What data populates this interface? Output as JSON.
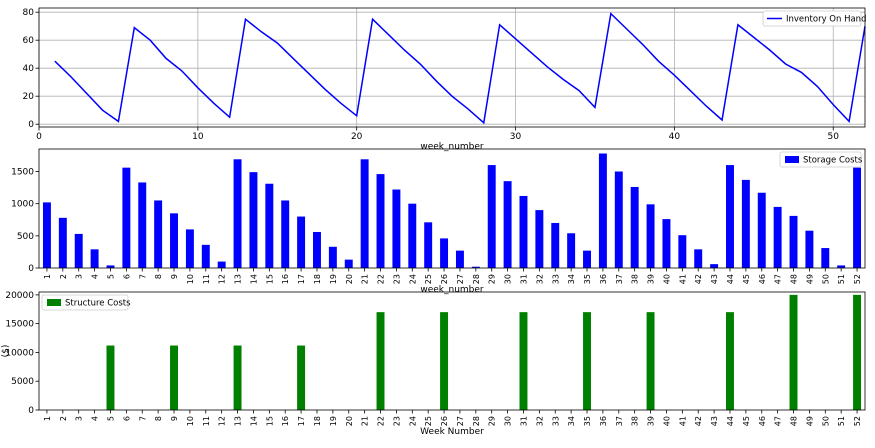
{
  "chart_data": [
    {
      "type": "line",
      "xlabel": "week_number",
      "ylabel": "",
      "xlim": [
        0,
        52
      ],
      "ylim": [
        -2,
        83
      ],
      "xticks": [
        0,
        10,
        20,
        30,
        40,
        50
      ],
      "yticks": [
        0,
        20,
        40,
        60,
        80
      ],
      "grid": true,
      "legend_position": "top-right",
      "series": [
        {
          "name": "Inventory On Hand",
          "color": "#0000ff",
          "x": [
            1,
            2,
            3,
            4,
            5,
            6,
            7,
            8,
            9,
            10,
            11,
            12,
            13,
            14,
            15,
            16,
            17,
            18,
            19,
            20,
            21,
            22,
            23,
            24,
            25,
            26,
            27,
            28,
            29,
            30,
            31,
            32,
            33,
            34,
            35,
            36,
            37,
            38,
            39,
            40,
            41,
            42,
            43,
            44,
            45,
            46,
            47,
            48,
            49,
            50,
            51,
            52
          ],
          "values": [
            45,
            34,
            22,
            10,
            2,
            69,
            60,
            47,
            38,
            26,
            15,
            5,
            75,
            66,
            58,
            47,
            36,
            25,
            15,
            6,
            75,
            64,
            53,
            43,
            31,
            20,
            11,
            1,
            71,
            61,
            51,
            41,
            32,
            24,
            12,
            79,
            68,
            57,
            45,
            35,
            24,
            13,
            3,
            71,
            62,
            53,
            43,
            37,
            27,
            14,
            2,
            70
          ]
        }
      ]
    },
    {
      "type": "bar",
      "xlabel": "week_number",
      "ylabel": "",
      "ylim": [
        0,
        1850
      ],
      "yticks": [
        0,
        500,
        1000,
        1500
      ],
      "grid": false,
      "legend_position": "top-right",
      "categories": [
        "1",
        "2",
        "3",
        "4",
        "5",
        "6",
        "7",
        "8",
        "9",
        "10",
        "11",
        "12",
        "13",
        "14",
        "15",
        "16",
        "17",
        "18",
        "19",
        "20",
        "21",
        "22",
        "23",
        "24",
        "25",
        "26",
        "27",
        "28",
        "29",
        "30",
        "31",
        "32",
        "33",
        "34",
        "35",
        "36",
        "37",
        "38",
        "39",
        "40",
        "41",
        "42",
        "43",
        "44",
        "45",
        "46",
        "47",
        "48",
        "49",
        "50",
        "51",
        "52"
      ],
      "series": [
        {
          "name": "Storage Costs",
          "color": "#0000ff",
          "values": [
            1020,
            780,
            530,
            290,
            40,
            1560,
            1330,
            1050,
            850,
            600,
            360,
            100,
            1690,
            1490,
            1310,
            1050,
            800,
            560,
            330,
            130,
            1690,
            1460,
            1220,
            1000,
            710,
            460,
            270,
            20,
            1600,
            1350,
            1120,
            900,
            700,
            540,
            270,
            1780,
            1500,
            1260,
            990,
            760,
            510,
            290,
            60,
            1600,
            1370,
            1170,
            950,
            810,
            580,
            310,
            40,
            1560
          ]
        }
      ]
    },
    {
      "type": "bar",
      "xlabel": "Week Number",
      "ylabel": "($)",
      "ylim": [
        0,
        20500
      ],
      "yticks": [
        0,
        5000,
        10000,
        15000,
        20000
      ],
      "grid": false,
      "legend_position": "top-left",
      "categories": [
        "1",
        "2",
        "3",
        "4",
        "5",
        "6",
        "7",
        "8",
        "9",
        "10",
        "11",
        "12",
        "13",
        "14",
        "15",
        "16",
        "17",
        "18",
        "19",
        "20",
        "21",
        "22",
        "23",
        "24",
        "25",
        "26",
        "27",
        "28",
        "29",
        "30",
        "31",
        "32",
        "33",
        "34",
        "35",
        "36",
        "37",
        "38",
        "39",
        "40",
        "41",
        "42",
        "43",
        "44",
        "45",
        "46",
        "47",
        "48",
        "49",
        "50",
        "51",
        "52"
      ],
      "series": [
        {
          "name": "Structure Costs",
          "color": "#008000",
          "values": [
            0,
            0,
            0,
            0,
            11200,
            0,
            0,
            0,
            11200,
            0,
            0,
            0,
            11200,
            0,
            0,
            0,
            11200,
            0,
            0,
            0,
            0,
            17000,
            0,
            0,
            0,
            17000,
            0,
            0,
            0,
            0,
            17000,
            0,
            0,
            0,
            17000,
            0,
            0,
            0,
            17000,
            0,
            0,
            0,
            0,
            17000,
            0,
            0,
            0,
            20000,
            0,
            0,
            0,
            20000
          ]
        }
      ]
    }
  ]
}
